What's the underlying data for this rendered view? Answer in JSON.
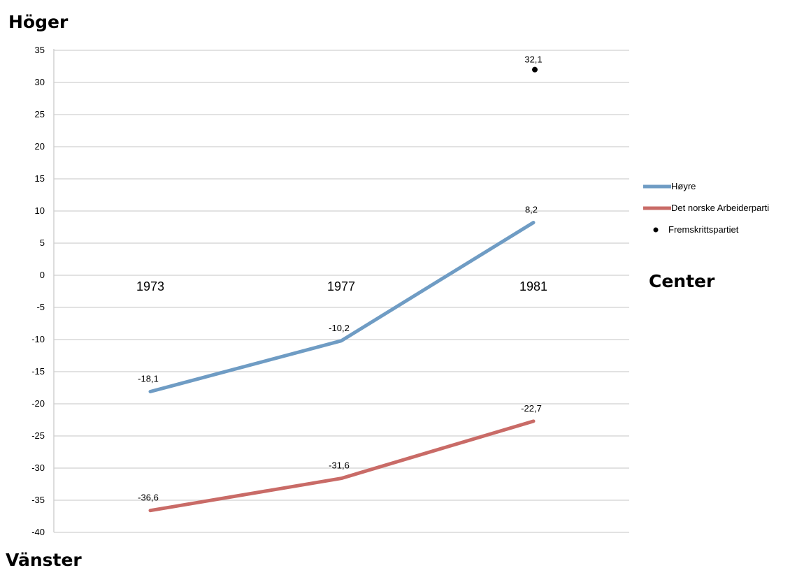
{
  "chart_data": {
    "type": "line",
    "categories": [
      "1973",
      "1977",
      "1981"
    ],
    "ylim": [
      -40,
      35
    ],
    "yticks": [
      35,
      30,
      25,
      20,
      15,
      10,
      5,
      0,
      -5,
      -10,
      -15,
      -20,
      -25,
      -30,
      -35,
      -40
    ],
    "grid": true,
    "legend_position": "right",
    "top_label": "Höger",
    "bottom_label": "Vänster",
    "center_label": "Center",
    "series": [
      {
        "name": "Høyre",
        "type": "line",
        "color": "#6f9cc4",
        "values": [
          -18.1,
          -10.2,
          8.2
        ],
        "labels": [
          "-18,1",
          "-10,2",
          "8,2"
        ]
      },
      {
        "name": "Det norske Arbeiderparti",
        "type": "line",
        "color": "#c96b67",
        "values": [
          -36.6,
          -31.6,
          -22.7
        ],
        "labels": [
          "-36,6",
          "-31,6",
          "-22,7"
        ]
      },
      {
        "name": "Fremskrittspartiet",
        "type": "scatter",
        "color": "#000000",
        "values": [
          null,
          null,
          32.1
        ],
        "labels": [
          null,
          null,
          "32,1"
        ]
      }
    ]
  }
}
